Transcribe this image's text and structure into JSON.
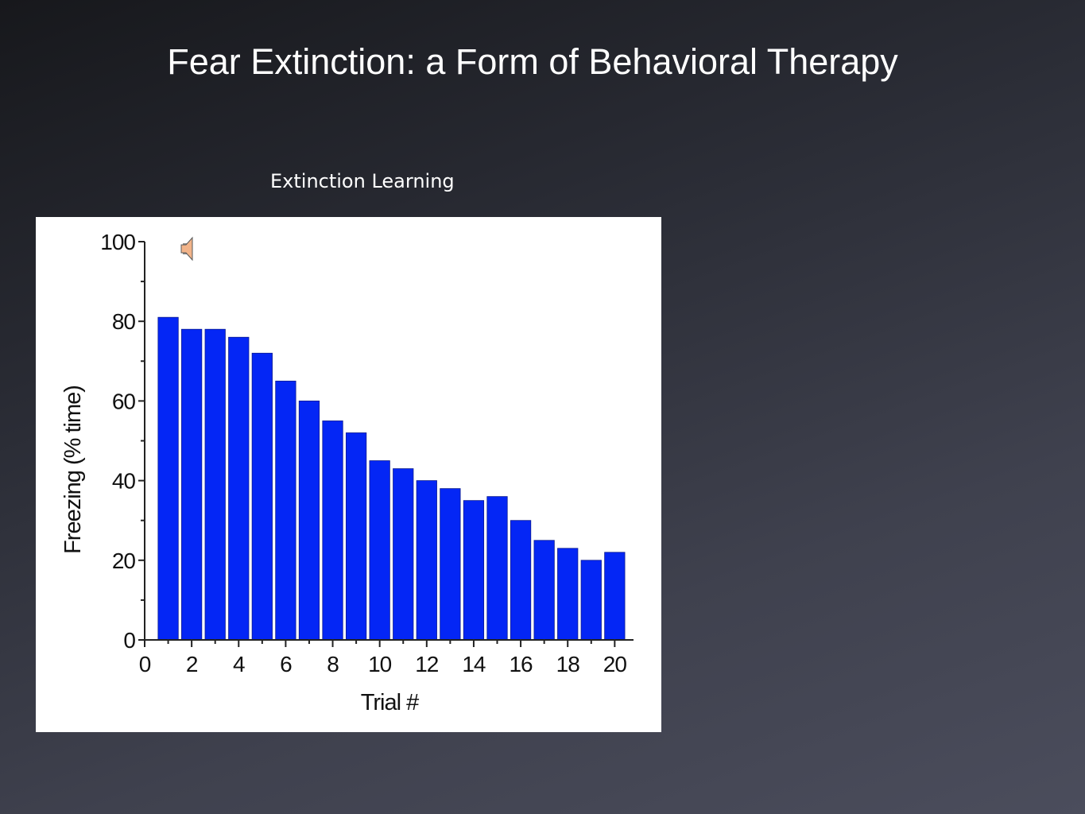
{
  "slide": {
    "title": "Fear Extinction: a Form of Behavioral Therapy",
    "caption": "Extinction Learning"
  },
  "media": {
    "icon": "speaker-icon"
  },
  "colors": {
    "bar": "#0426f5",
    "axis": "#222222"
  },
  "chart_data": {
    "type": "bar",
    "categories": [
      1,
      2,
      3,
      4,
      5,
      6,
      7,
      8,
      9,
      10,
      11,
      12,
      13,
      14,
      15,
      16,
      17,
      18,
      19,
      20
    ],
    "values": [
      81,
      78,
      78,
      76,
      72,
      65,
      60,
      55,
      52,
      45,
      43,
      40,
      38,
      35,
      36,
      30,
      25,
      23,
      20,
      22
    ],
    "xlabel": "Trial #",
    "ylabel": "Freezing (% time)",
    "xlim": [
      0,
      20.8
    ],
    "ylim": [
      0,
      100
    ],
    "x_ticks": [
      0,
      2,
      4,
      6,
      8,
      10,
      12,
      14,
      16,
      18,
      20
    ],
    "y_ticks": [
      0,
      20,
      40,
      60,
      80,
      100
    ],
    "grid": false
  }
}
